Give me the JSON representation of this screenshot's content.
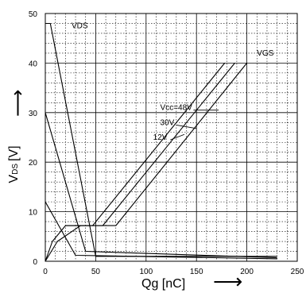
{
  "chart_data": {
    "type": "line",
    "title": "",
    "xlabel": "Qg [nC]",
    "ylabel_main": "V",
    "ylabel_sub": "DS",
    "ylabel_unit": "[V]",
    "xlim": [
      0,
      250
    ],
    "ylim": [
      0,
      50
    ],
    "x_major_ticks": [
      0,
      50,
      100,
      150,
      200,
      250
    ],
    "x_tick_labels": [
      "0",
      "50",
      "100",
      "150",
      "200",
      "250"
    ],
    "y_major_ticks": [
      0,
      10,
      20,
      30,
      40,
      50
    ],
    "y_tick_labels": [
      "0",
      "10",
      "20",
      "30",
      "40",
      "50"
    ],
    "grid": true,
    "arrow_right": "⟶",
    "arrow_up": "⟶",
    "series": [
      {
        "name": "VDS",
        "group": "vds",
        "points": [
          [
            0,
            48
          ],
          [
            5,
            48
          ],
          [
            50,
            1
          ],
          [
            230,
            1
          ]
        ]
      },
      {
        "group": "vds",
        "points": [
          [
            0,
            30
          ],
          [
            40,
            2
          ],
          [
            230,
            0.7
          ]
        ]
      },
      {
        "group": "vds",
        "points": [
          [
            0,
            12
          ],
          [
            30,
            1.2
          ],
          [
            230,
            0.5
          ]
        ]
      },
      {
        "name": "VGS",
        "group": "vgs",
        "points": [
          [
            0,
            0
          ],
          [
            7,
            4
          ],
          [
            20,
            7.2
          ],
          [
            70,
            7.2
          ],
          [
            200,
            40
          ]
        ]
      },
      {
        "group": "vgs",
        "points": [
          [
            20,
            7.2
          ],
          [
            57,
            7.2
          ],
          [
            188,
            40
          ]
        ]
      },
      {
        "group": "vgs",
        "points": [
          [
            0,
            0
          ],
          [
            12,
            4
          ],
          [
            35,
            7.2
          ],
          [
            47,
            7.2
          ],
          [
            178,
            40
          ]
        ]
      }
    ],
    "annotations": [
      {
        "text": "VDS",
        "x": 26,
        "y": 47
      },
      {
        "text": "VGS",
        "x": 210,
        "y": 41.5
      },
      {
        "text": "Vcc=48V",
        "x": 114,
        "y": 30.5
      },
      {
        "text": "30V",
        "x": 114,
        "y": 27.5
      },
      {
        "text": "12V",
        "x": 107,
        "y": 24.5
      }
    ],
    "leaders": [
      {
        "from": [
          147,
          30.5
        ],
        "to": [
          172,
          30.5
        ]
      },
      {
        "from": [
          130,
          27.5
        ],
        "to": [
          150,
          26.8
        ]
      },
      {
        "from": [
          124,
          24.5
        ],
        "to": [
          138,
          25.6
        ]
      }
    ]
  }
}
